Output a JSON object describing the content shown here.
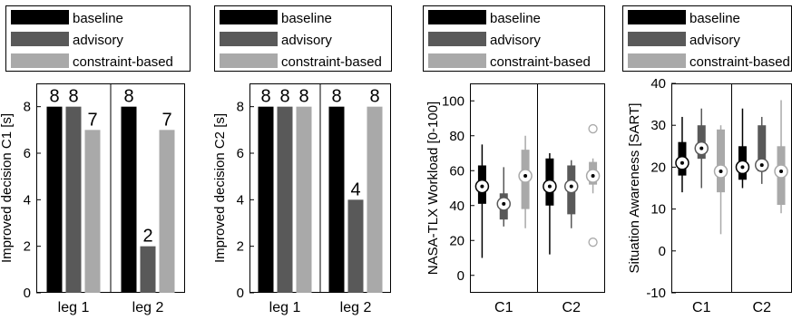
{
  "legend": {
    "entries": [
      {
        "label": "baseline",
        "color": "#000000"
      },
      {
        "label": "advisory",
        "color": "#595959"
      },
      {
        "label": "constraint-based",
        "color": "#a9a9a9"
      }
    ],
    "placement": "top"
  },
  "chart_data": [
    {
      "type": "bar",
      "ylabel": "Improved decision C1 [s]",
      "xlabel": "",
      "ylim": [
        0,
        9
      ],
      "yticks": [
        0,
        2,
        4,
        6,
        8
      ],
      "categories": [
        "leg 1",
        "leg 2"
      ],
      "series": [
        {
          "name": "baseline",
          "values": [
            8,
            8
          ]
        },
        {
          "name": "advisory",
          "values": [
            8,
            2
          ]
        },
        {
          "name": "constraint-based",
          "values": [
            7,
            7
          ]
        }
      ],
      "data_labels": [
        [
          "8",
          "8",
          "7"
        ],
        [
          "8",
          "2",
          "7"
        ]
      ]
    },
    {
      "type": "bar",
      "ylabel": "Improved decision C2 [s]",
      "xlabel": "",
      "ylim": [
        0,
        9
      ],
      "yticks": [
        0,
        2,
        4,
        6,
        8
      ],
      "categories": [
        "leg 1",
        "leg 2"
      ],
      "series": [
        {
          "name": "baseline",
          "values": [
            8,
            8
          ]
        },
        {
          "name": "advisory",
          "values": [
            8,
            4
          ]
        },
        {
          "name": "constraint-based",
          "values": [
            8,
            8
          ]
        }
      ],
      "data_labels": [
        [
          "8",
          "8",
          "8"
        ],
        [
          "8",
          "4",
          "8"
        ]
      ]
    },
    {
      "type": "box",
      "ylabel": "NASA-TLX Workload [0-100]",
      "xlabel": "",
      "ylim": [
        -10,
        110
      ],
      "yticks": [
        0,
        20,
        40,
        60,
        80,
        100
      ],
      "categories": [
        "C1",
        "C2"
      ],
      "groups": [
        {
          "category": "C1",
          "boxes": [
            {
              "series": "baseline",
              "min": 10,
              "q1": 41,
              "median": 51,
              "q3": 63,
              "max": 75,
              "outliers": []
            },
            {
              "series": "advisory",
              "min": 28,
              "q1": 32,
              "median": 41,
              "q3": 47,
              "max": 62,
              "outliers": []
            },
            {
              "series": "constraint-based",
              "min": 27,
              "q1": 38,
              "median": 57,
              "q3": 72,
              "max": 80,
              "outliers": []
            }
          ]
        },
        {
          "category": "C2",
          "boxes": [
            {
              "series": "baseline",
              "min": 12,
              "q1": 40,
              "median": 51,
              "q3": 67,
              "max": 70,
              "outliers": []
            },
            {
              "series": "advisory",
              "min": 27,
              "q1": 35,
              "median": 51,
              "q3": 63,
              "max": 66,
              "outliers": []
            },
            {
              "series": "constraint-based",
              "min": 47,
              "q1": 52,
              "median": 57,
              "q3": 65,
              "max": 67,
              "outliers": [
                84,
                19
              ]
            }
          ]
        }
      ]
    },
    {
      "type": "box",
      "ylabel": "Situation Awareness [SART]",
      "xlabel": "",
      "ylim": [
        -10,
        40
      ],
      "yticks": [
        -10,
        0,
        10,
        20,
        30,
        40
      ],
      "categories": [
        "C1",
        "C2"
      ],
      "groups": [
        {
          "category": "C1",
          "boxes": [
            {
              "series": "baseline",
              "min": 14,
              "q1": 18,
              "median": 21,
              "q3": 26,
              "max": 32,
              "outliers": []
            },
            {
              "series": "advisory",
              "min": 15,
              "q1": 22,
              "median": 24.5,
              "q3": 30,
              "max": 34,
              "outliers": []
            },
            {
              "series": "constraint-based",
              "min": 4,
              "q1": 14,
              "median": 19,
              "q3": 29,
              "max": 30,
              "outliers": []
            }
          ]
        },
        {
          "category": "C2",
          "boxes": [
            {
              "series": "baseline",
              "min": 15,
              "q1": 17,
              "median": 20,
              "q3": 25,
              "max": 34,
              "outliers": []
            },
            {
              "series": "advisory",
              "min": 16,
              "q1": 19,
              "median": 20.5,
              "q3": 30,
              "max": 32,
              "outliers": []
            },
            {
              "series": "constraint-based",
              "min": 9,
              "q1": 11,
              "median": 19,
              "q3": 25,
              "max": 36,
              "outliers": []
            }
          ]
        }
      ]
    }
  ]
}
